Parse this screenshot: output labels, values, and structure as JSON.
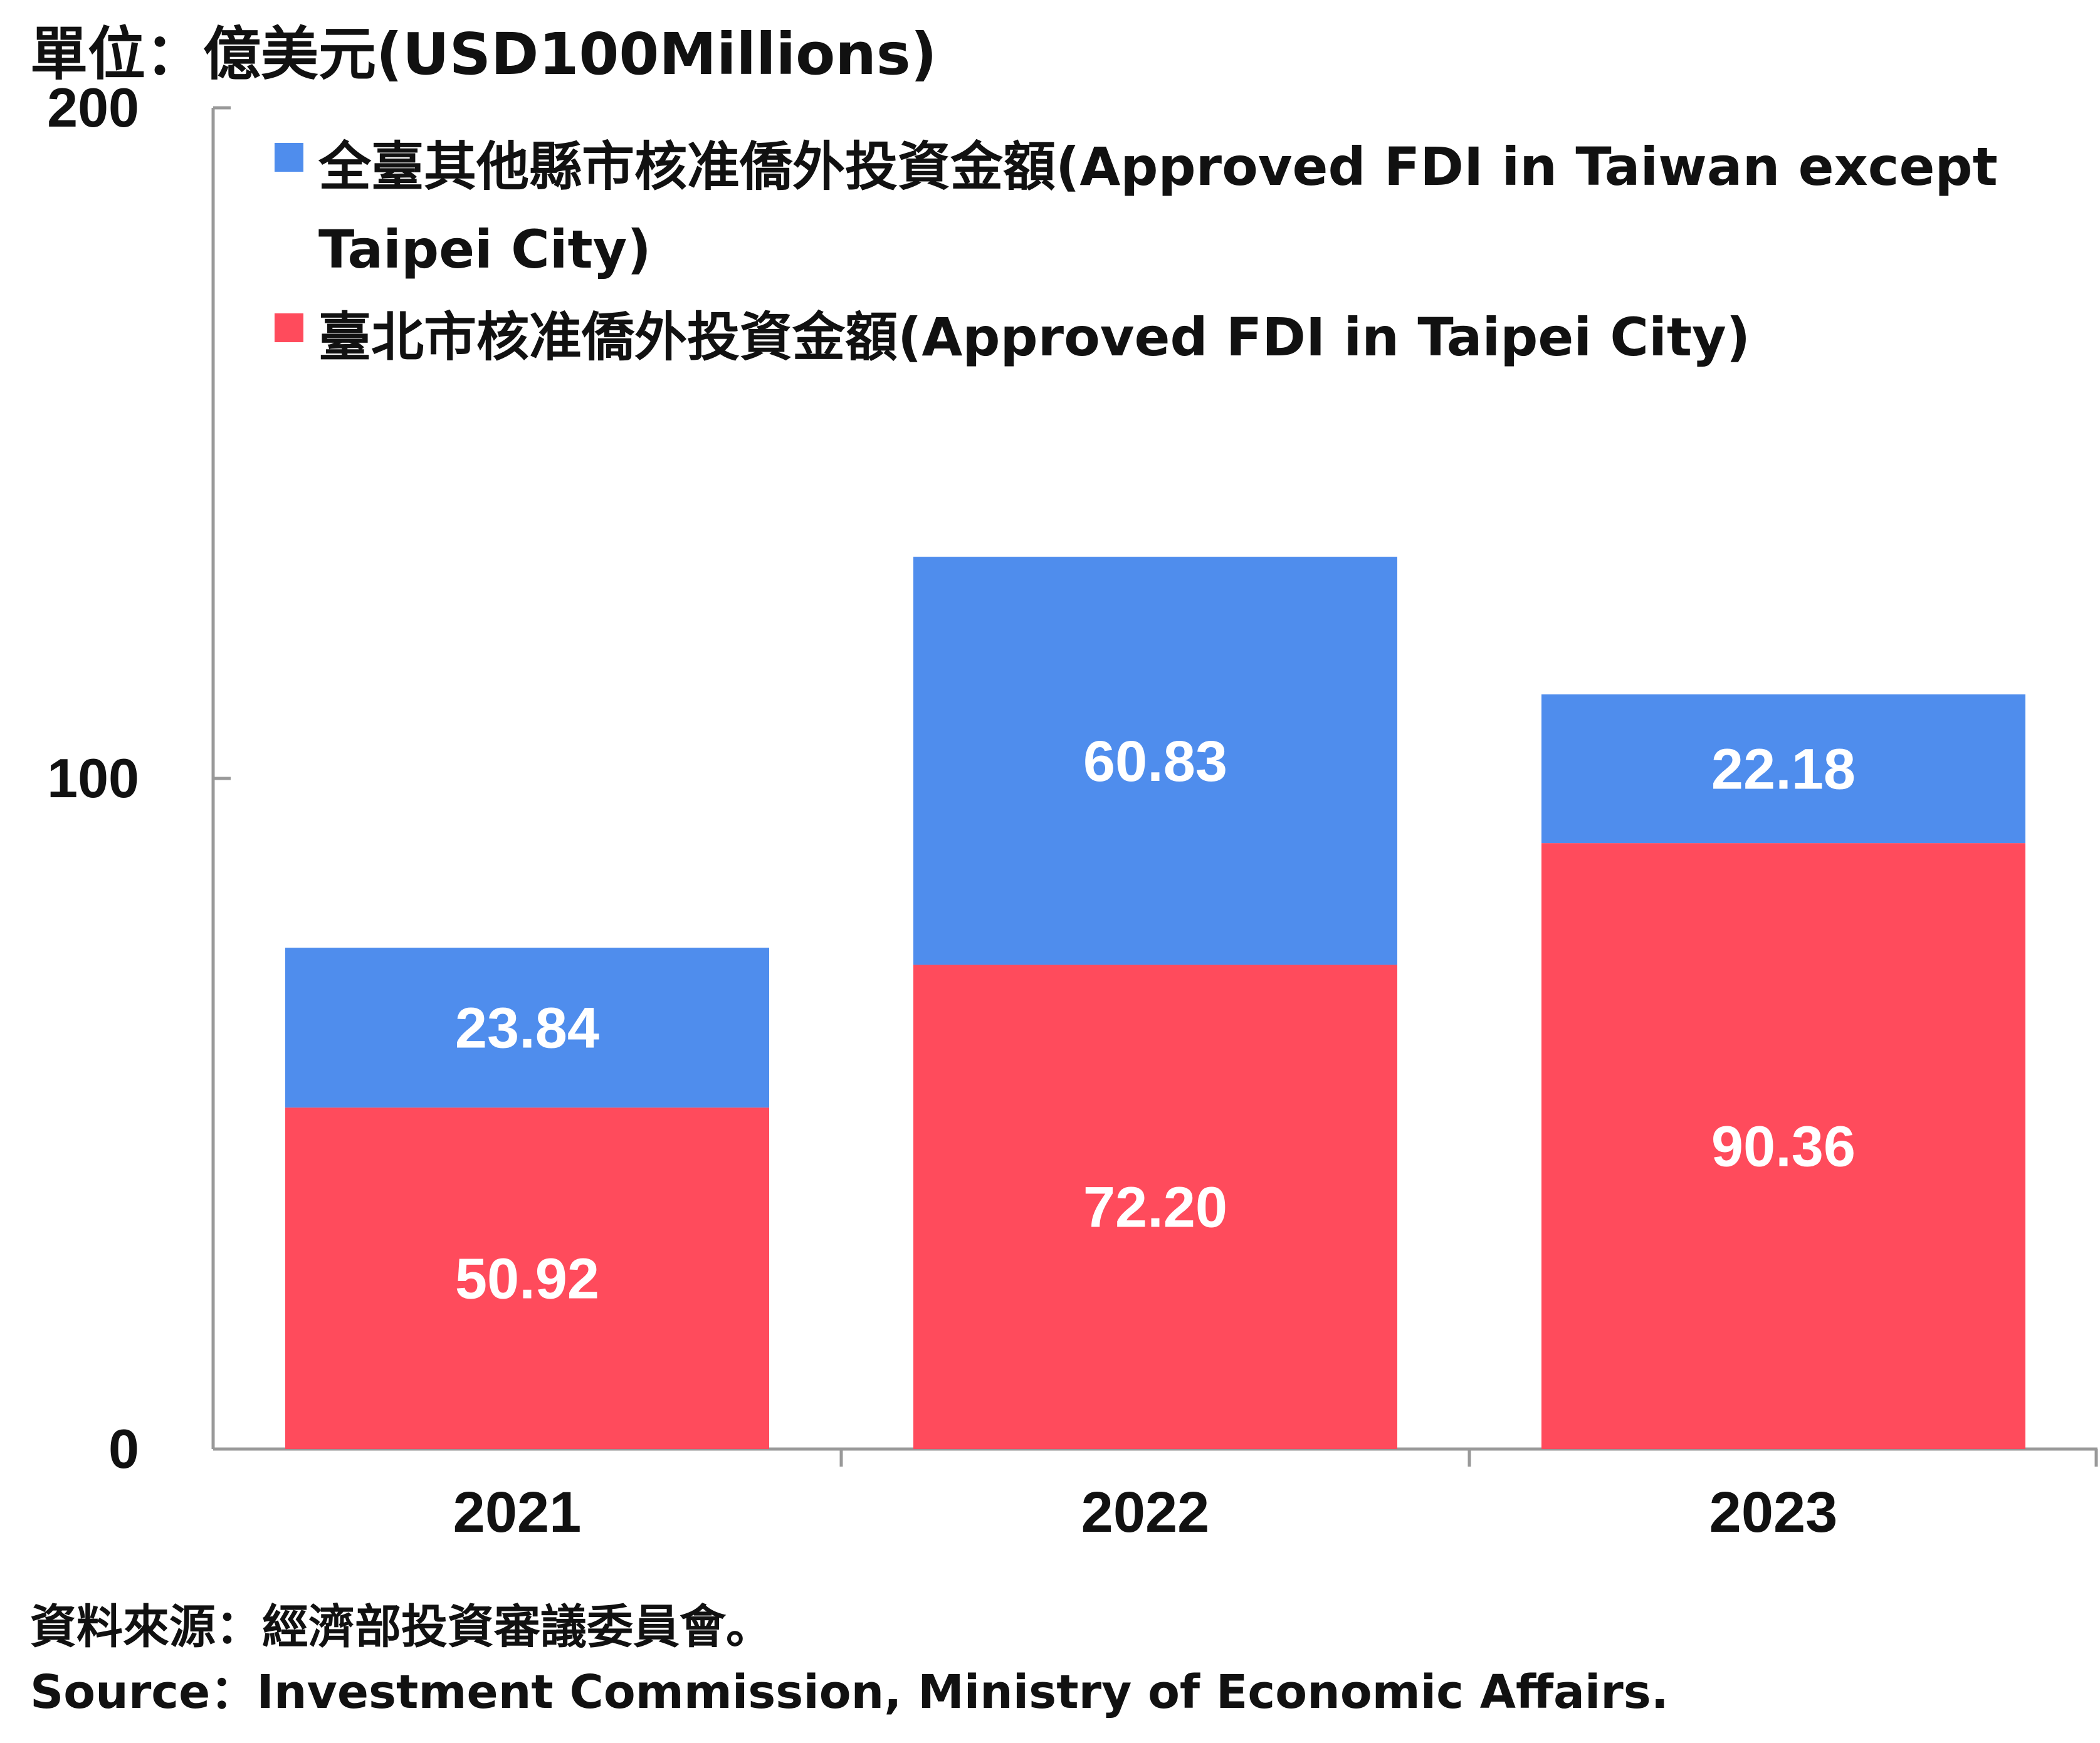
{
  "unit_label": "單位：億美元(USD100Millions)",
  "source_zh": "資料來源：經濟部投資審議委員會。",
  "source_en": "Source：Investment Commission, Ministry of Economic Affairs.",
  "colors": {
    "taipei": "#ff4b5c",
    "other": "#4f8ded",
    "axis": "#999999",
    "label_on_bar": "#ffffff"
  },
  "chart_data": {
    "type": "bar",
    "stacked": true,
    "categories": [
      "2021",
      "2022",
      "2023"
    ],
    "ylim": [
      0,
      200
    ],
    "yticks": [
      "0",
      "100",
      "200"
    ],
    "series": [
      {
        "name": "臺北市核准僑外投資金額(Approved FDI in Taipei City)",
        "values": [
          50.92,
          72.2,
          90.36
        ],
        "labels": [
          "50.92",
          "72.20",
          "90.36"
        ]
      },
      {
        "name": "全臺其他縣市核准僑外投資金額(Approved FDI in Taiwan except Taipei City)",
        "values": [
          23.84,
          60.83,
          22.18
        ],
        "labels": [
          "23.84",
          "60.83",
          "22.18"
        ]
      }
    ]
  }
}
